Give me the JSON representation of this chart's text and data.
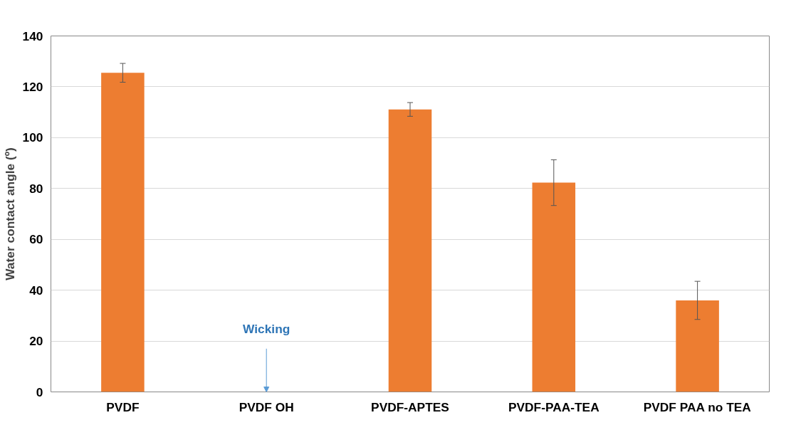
{
  "chart_data": {
    "type": "bar",
    "ylabel": "Water contact angle (º)",
    "categories": [
      "PVDF",
      "PVDF OH",
      "PVDF-APTES",
      "PVDF-PAA-TEA",
      "PVDF PAA no TEA"
    ],
    "values": [
      125.5,
      null,
      111.1,
      82.3,
      36.0
    ],
    "errors": [
      3.7,
      null,
      2.7,
      9,
      7.5
    ],
    "color": "#ed7d31",
    "ylim": [
      0,
      140
    ],
    "yticks": [
      0,
      20,
      40,
      60,
      80,
      100,
      120,
      140
    ],
    "grid": "y",
    "annotations": [
      "Wicking"
    ]
  }
}
